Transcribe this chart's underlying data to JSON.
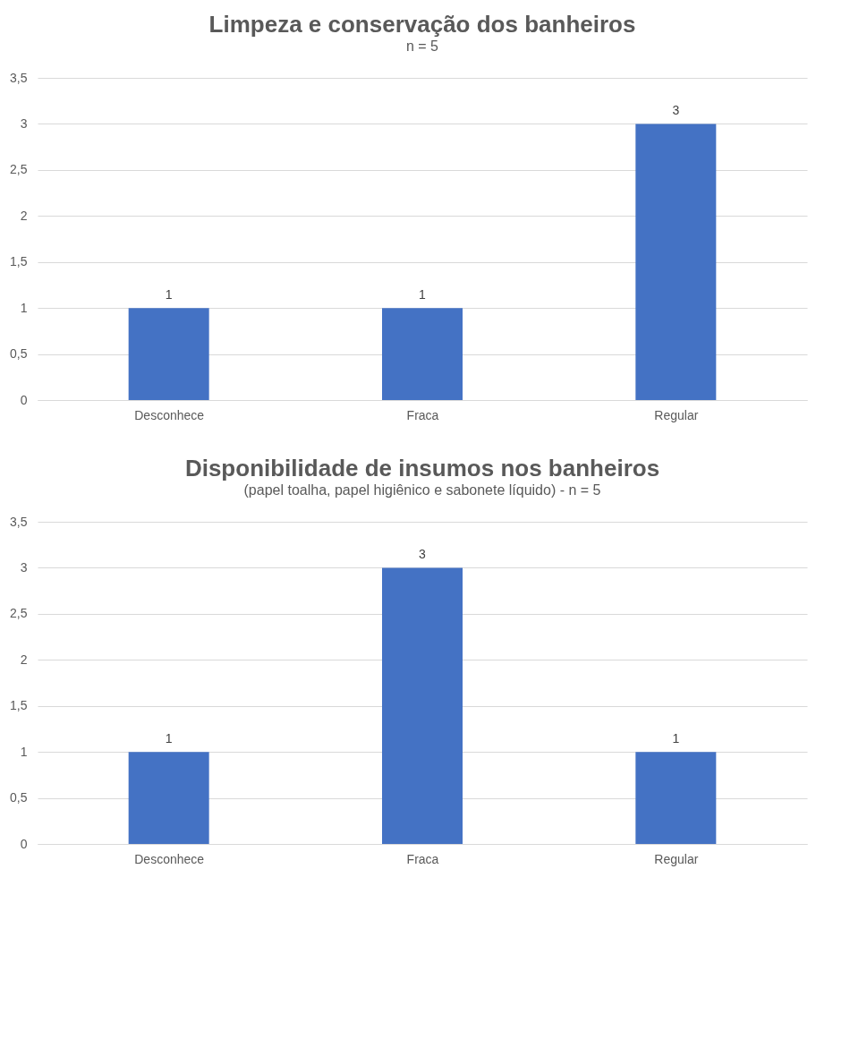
{
  "chart_data": [
    {
      "type": "bar",
      "title": "Limpeza e conservação dos banheiros",
      "subtitle": "n = 5",
      "categories": [
        "Desconhece",
        "Fraca",
        "Regular"
      ],
      "values": [
        1,
        1,
        3
      ],
      "color": "#4472c4",
      "ylim": [
        0,
        3.5
      ],
      "yticks": [
        0,
        {
          "value": 0.5,
          "label": "0,5"
        },
        1,
        {
          "value": 1.5,
          "label": "1,5"
        },
        2,
        {
          "value": 2.5,
          "label": "2,5"
        },
        3,
        {
          "value": 3.5,
          "label": "3,5"
        }
      ],
      "grid": "y",
      "data_labels": true
    },
    {
      "type": "bar",
      "title": "Disponibilidade de insumos nos banheiros",
      "subtitle": "(papel toalha, papel higiênico e sabonete líquido) - n = 5",
      "categories": [
        "Desconhece",
        "Fraca",
        "Regular"
      ],
      "values": [
        1,
        3,
        1
      ],
      "color": "#4472c4",
      "ylim": [
        0,
        3.5
      ],
      "yticks": [
        0,
        {
          "value": 0.5,
          "label": "0,5"
        },
        1,
        {
          "value": 1.5,
          "label": "1,5"
        },
        2,
        {
          "value": 2.5,
          "label": "2,5"
        },
        3,
        {
          "value": 3.5,
          "label": "3,5"
        }
      ],
      "grid": "y",
      "data_labels": true
    }
  ]
}
